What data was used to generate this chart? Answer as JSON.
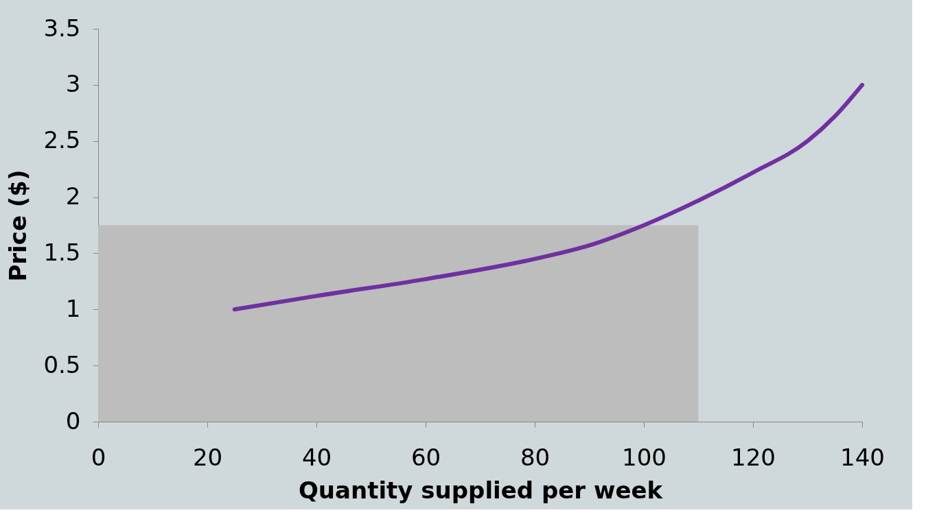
{
  "chart_data": {
    "type": "line",
    "xlabel": "Quantity supplied per week",
    "ylabel": "Price ($)",
    "xlim": [
      0,
      140
    ],
    "xticks": [
      0,
      20,
      40,
      60,
      80,
      100,
      120,
      140
    ],
    "ylim": [
      0,
      3.5
    ],
    "yticks": [
      0,
      0.5,
      1,
      1.5,
      2,
      2.5,
      3,
      3.5
    ],
    "grid": false,
    "marker": "none",
    "line_style": "solid",
    "series": [
      {
        "type": "area",
        "color": "#bdbdbd",
        "x": [
          0,
          110
        ],
        "values": [
          1.75,
          1.75
        ]
      },
      {
        "color": "#7030a0",
        "x": [
          25,
          40,
          60,
          80,
          90,
          100,
          110,
          120,
          130,
          135,
          140
        ],
        "values": [
          1,
          1.12,
          1.27,
          1.45,
          1.57,
          1.75,
          1.97,
          2.22,
          2.5,
          2.72,
          3.0
        ]
      }
    ]
  }
}
